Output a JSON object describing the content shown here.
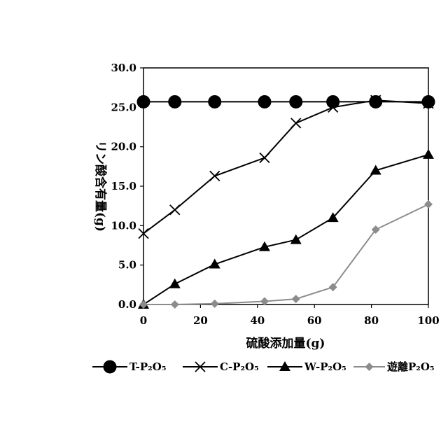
{
  "chart_data": {
    "type": "line",
    "xlabel": "硫酸添加量(g)",
    "ylabel": "リン酸含有量(g)",
    "xlim": [
      0,
      100
    ],
    "ylim": [
      0,
      30
    ],
    "x_ticks": [
      "0",
      "20",
      "40",
      "60",
      "80",
      "100"
    ],
    "y_ticks": [
      "0.0",
      "5.0",
      "10.0",
      "15.0",
      "20.0",
      "25.0",
      "30.0"
    ],
    "grid": false,
    "legend_position": "bottom",
    "series": [
      {
        "name": "T-P₂O₅",
        "marker": "circle",
        "color": "#000000",
        "points": [
          [
            0,
            25.7
          ],
          [
            11,
            25.7
          ],
          [
            25,
            25.7
          ],
          [
            42.5,
            25.7
          ],
          [
            53.5,
            25.7
          ],
          [
            66.5,
            25.7
          ],
          [
            81.5,
            25.7
          ],
          [
            100,
            25.7
          ]
        ]
      },
      {
        "name": "C-P₂O₅",
        "marker": "x",
        "color": "#000000",
        "points": [
          [
            0,
            9.0
          ],
          [
            11,
            12.0
          ],
          [
            25,
            16.3
          ],
          [
            42.5,
            18.6
          ],
          [
            53.5,
            23.0
          ],
          [
            66.5,
            25.0
          ],
          [
            81.5,
            25.9
          ],
          [
            100,
            25.5
          ]
        ]
      },
      {
        "name": "W-P₂O₅",
        "marker": "triangle",
        "color": "#000000",
        "points": [
          [
            0,
            0.0
          ],
          [
            11,
            2.6
          ],
          [
            25,
            5.1
          ],
          [
            42.5,
            7.3
          ],
          [
            53.5,
            8.2
          ],
          [
            66.5,
            11.0
          ],
          [
            81.5,
            17.0
          ],
          [
            100,
            19.0
          ]
        ]
      },
      {
        "name": "遊離P₂O₅",
        "marker": "diamond",
        "color": "#8c8c8c",
        "points": [
          [
            0,
            0.0
          ],
          [
            11,
            0.0
          ],
          [
            25,
            0.1
          ],
          [
            42.5,
            0.4
          ],
          [
            53.5,
            0.7
          ],
          [
            66.5,
            2.2
          ],
          [
            81.5,
            9.5
          ],
          [
            100,
            12.7
          ]
        ]
      }
    ]
  }
}
